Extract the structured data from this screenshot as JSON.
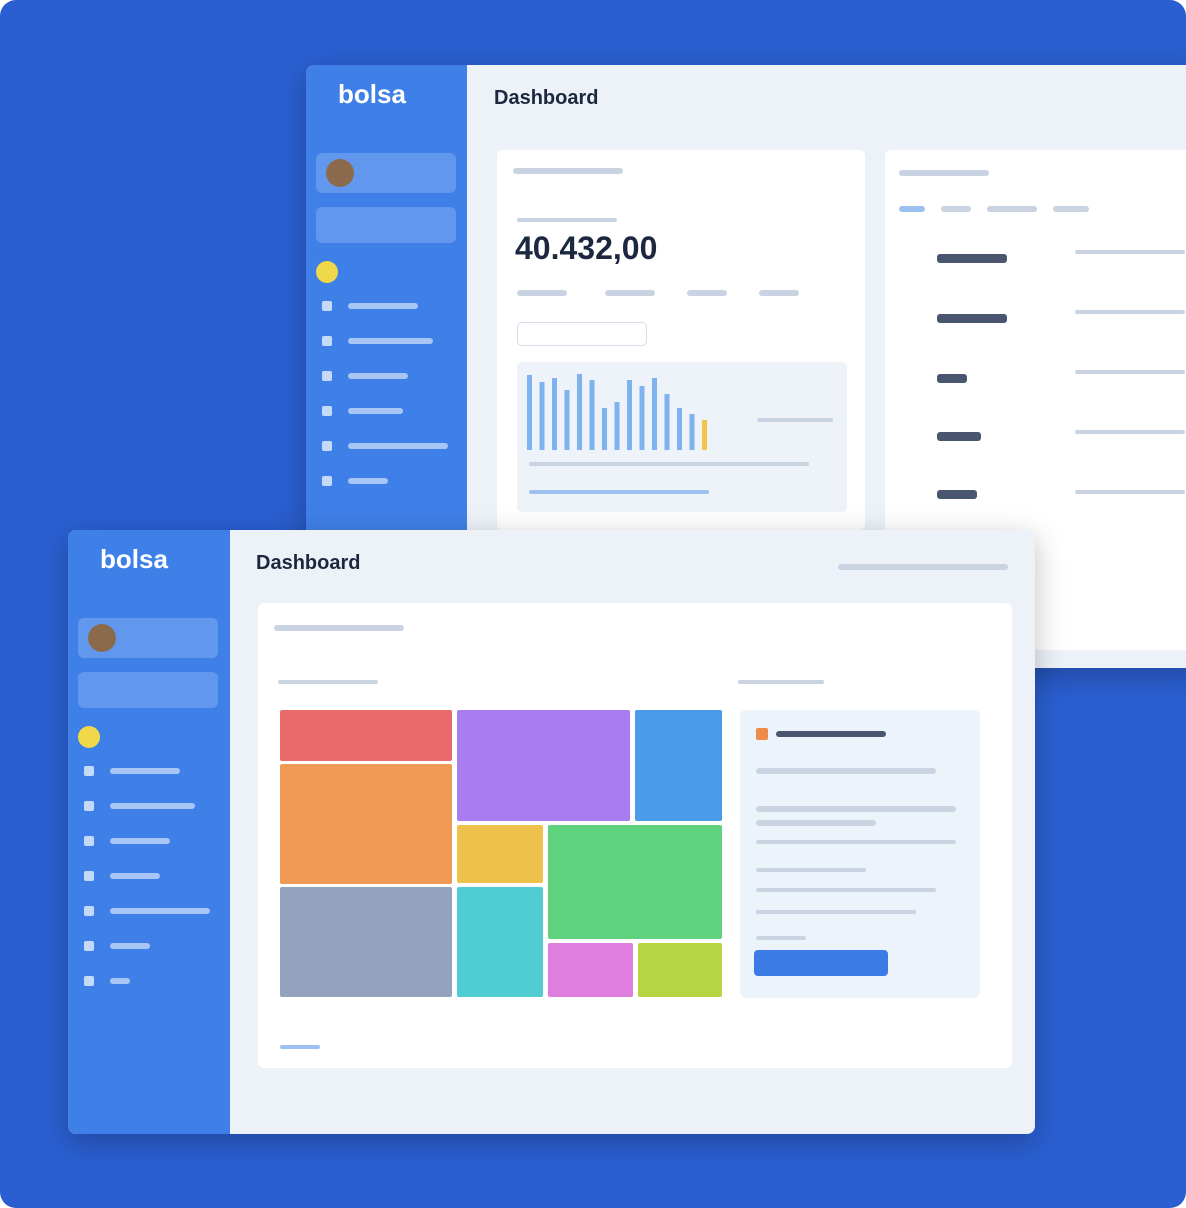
{
  "back_window": {
    "logo": "bolsa",
    "title": "Dashboard",
    "main_value": "40.432,00",
    "bar_chart": {
      "values": [
        75,
        68,
        72,
        60,
        76,
        70,
        42,
        48,
        70,
        64,
        72,
        56,
        42,
        36,
        30
      ],
      "colors": [
        "#7fb3f0",
        "#7fb3f0",
        "#7fb3f0",
        "#7fb3f0",
        "#7fb3f0",
        "#7fb3f0",
        "#7fb3f0",
        "#7fb3f0",
        "#7fb3f0",
        "#7fb3f0",
        "#7fb3f0",
        "#7fb3f0",
        "#7fb3f0",
        "#7fb3f0",
        "#f1c54a"
      ]
    }
  },
  "front_window": {
    "logo": "bolsa",
    "title": "Dashboard"
  }
}
